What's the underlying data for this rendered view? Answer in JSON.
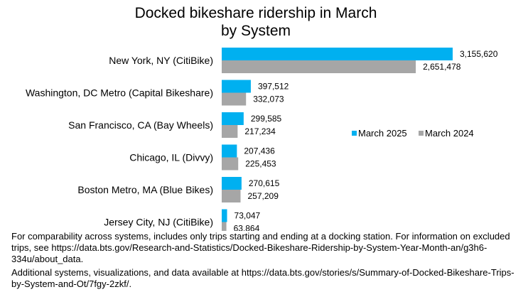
{
  "chart_data": {
    "type": "bar",
    "orientation": "horizontal",
    "title_line1": "Docked bikeshare ridership in March",
    "title_line2": "by System",
    "categories": [
      "New York, NY (CitiBike)",
      "Washington, DC Metro (Capital Bikeshare)",
      "San Francisco, CA (Bay Wheels)",
      "Chicago, IL (Divvy)",
      "Boston Metro, MA (Blue Bikes)",
      "Jersey City, NJ (CitiBike)"
    ],
    "series": [
      {
        "name": "March 2025",
        "color": "#00b0f0",
        "values": [
          3155620,
          397512,
          299585,
          207436,
          270615,
          73047
        ],
        "labels": [
          "3,155,620",
          "397,512",
          "299,585",
          "207,436",
          "270,615",
          "73,047"
        ]
      },
      {
        "name": "March 2024",
        "color": "#a6a6a6",
        "values": [
          2651478,
          332073,
          217234,
          225453,
          257209,
          63864
        ],
        "labels": [
          "2,651,478",
          "332,073",
          "217,234",
          "225,453",
          "257,209",
          "63,864"
        ]
      }
    ],
    "legend_position": "right",
    "grid": false
  },
  "footnote": {
    "line1": "For comparability across systems, includes only trips starting and ending at a docking station. For information on excluded trips, see https://data.bts.gov/Research-and-Statistics/Docked-Bikeshare-Ridership-by-System-Year-Month-an/g3h6-334u/about_data.",
    "line2": "Additional systems, visualizations, and data available at https://data.bts.gov/stories/s/Summary-of-Docked-Bikeshare-Trips-by-System-and-Ot/7fgy-2zkf/."
  }
}
